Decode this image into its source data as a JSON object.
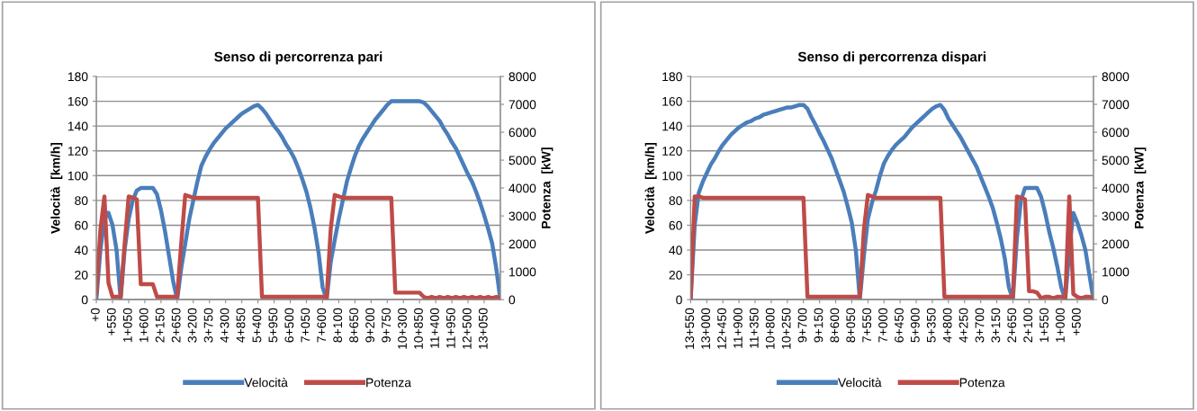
{
  "chart_data": [
    {
      "type": "line",
      "title": "Senso di percorrenza pari",
      "ylabel": "Velocità  [km/h]",
      "y2label": "Potenza  [kW]",
      "ylim": [
        0,
        180
      ],
      "yticks": [
        0,
        20,
        40,
        60,
        80,
        100,
        120,
        140,
        160,
        180
      ],
      "y2lim": [
        0,
        8000
      ],
      "y2ticks": [
        0,
        1000,
        2000,
        3000,
        4000,
        5000,
        6000,
        7000,
        8000
      ],
      "grid": "y",
      "legend": "bottom",
      "categories": [
        "+0",
        null,
        null,
        null,
        "+550",
        null,
        null,
        null,
        "1+050",
        null,
        null,
        null,
        "1+600",
        null,
        null,
        null,
        "2+150",
        null,
        null,
        null,
        "2+650",
        null,
        null,
        null,
        "3+200",
        null,
        null,
        null,
        "3+750",
        null,
        null,
        null,
        "4+300",
        null,
        null,
        null,
        "4+850",
        null,
        null,
        null,
        "5+400",
        null,
        null,
        null,
        "5+950",
        null,
        null,
        null,
        "6+500",
        null,
        null,
        null,
        "7+050",
        null,
        null,
        null,
        "7+600",
        null,
        null,
        null,
        "8+100",
        null,
        null,
        null,
        "8+650",
        null,
        null,
        null,
        "9+200",
        null,
        null,
        null,
        "9+750",
        null,
        null,
        null,
        "10+300",
        null,
        null,
        null,
        "10+850",
        null,
        null,
        null,
        "11+400",
        null,
        null,
        null,
        "11+950",
        null,
        null,
        null,
        "12+500",
        null,
        null,
        null,
        "13+050",
        null,
        null,
        null,
        null
      ],
      "series": [
        {
          "name": "Velocità",
          "color": "#4a7ebb",
          "values": [
            0,
            40,
            65,
            70,
            60,
            40,
            0,
            40,
            65,
            80,
            88,
            90,
            90,
            90,
            90,
            85,
            72,
            55,
            35,
            15,
            0,
            25,
            45,
            65,
            80,
            95,
            108,
            115,
            121,
            126,
            130,
            134,
            138,
            141,
            144,
            147,
            150,
            152,
            154,
            156,
            157,
            154,
            150,
            145,
            140,
            136,
            131,
            125,
            120,
            114,
            106,
            97,
            87,
            74,
            58,
            38,
            10,
            0,
            30,
            48,
            65,
            80,
            95,
            106,
            116,
            124,
            130,
            135,
            140,
            145,
            149,
            153,
            157,
            160,
            160,
            160,
            160,
            160,
            160,
            160,
            160,
            159,
            156,
            152,
            148,
            144,
            138,
            133,
            127,
            122,
            115,
            108,
            101,
            95,
            87,
            78,
            68,
            57,
            45,
            25,
            0
          ]
        },
        {
          "name": "Potenza",
          "color": "#be4b48",
          "axis": "y2",
          "values": [
            200,
            2500,
            3700,
            600,
            100,
            100,
            100,
            2000,
            3700,
            3650,
            3600,
            550,
            550,
            550,
            550,
            100,
            100,
            100,
            100,
            100,
            100,
            2000,
            3750,
            3700,
            3650,
            3650,
            3650,
            3650,
            3650,
            3650,
            3650,
            3650,
            3650,
            3650,
            3650,
            3650,
            3650,
            3650,
            3650,
            3650,
            3650,
            100,
            100,
            100,
            100,
            100,
            100,
            100,
            100,
            100,
            100,
            100,
            100,
            100,
            100,
            100,
            100,
            50,
            2500,
            3750,
            3700,
            3650,
            3650,
            3650,
            3650,
            3650,
            3650,
            3650,
            3650,
            3650,
            3650,
            3650,
            3650,
            3650,
            250,
            250,
            250,
            250,
            250,
            250,
            250,
            100,
            50,
            100,
            50,
            100,
            50,
            100,
            50,
            100,
            50,
            100,
            50,
            100,
            50,
            100,
            50,
            100,
            50,
            100,
            50
          ]
        }
      ]
    },
    {
      "type": "line",
      "title": "Senso di percorrenza dispari",
      "ylabel": "Velocità  [km/h]",
      "y2label": "Potenza  [kW]",
      "ylim": [
        0,
        180
      ],
      "yticks": [
        0,
        20,
        40,
        60,
        80,
        100,
        120,
        140,
        160,
        180
      ],
      "y2lim": [
        0,
        8000
      ],
      "y2ticks": [
        0,
        1000,
        2000,
        3000,
        4000,
        5000,
        6000,
        7000,
        8000
      ],
      "grid": "y",
      "legend": "bottom",
      "categories": [
        "13+550",
        null,
        null,
        null,
        "13+000",
        null,
        null,
        null,
        "12+450",
        null,
        null,
        null,
        "11+900",
        null,
        null,
        null,
        "11+350",
        null,
        null,
        null,
        "10+800",
        null,
        null,
        null,
        "10+250",
        null,
        null,
        null,
        "9+700",
        null,
        null,
        null,
        "9+150",
        null,
        null,
        null,
        "8+600",
        null,
        null,
        null,
        "8+050",
        null,
        null,
        null,
        "7+550",
        null,
        null,
        null,
        "7+000",
        null,
        null,
        null,
        "6+450",
        null,
        null,
        null,
        "5+900",
        null,
        null,
        null,
        "5+350",
        null,
        null,
        null,
        "4+800",
        null,
        null,
        null,
        "4+250",
        null,
        null,
        null,
        "3+700",
        null,
        null,
        null,
        "3+150",
        null,
        null,
        null,
        "2+650",
        null,
        null,
        null,
        "2+100",
        null,
        null,
        null,
        "1+550",
        null,
        null,
        null,
        "1+000",
        null,
        null,
        null,
        "+500",
        null,
        null,
        null,
        null
      ],
      "series": [
        {
          "name": "Velocità",
          "color": "#4a7ebb",
          "values": [
            0,
            60,
            86,
            95,
            102,
            109,
            114,
            120,
            125,
            129,
            133,
            136,
            139,
            141,
            143,
            144,
            146,
            147,
            149,
            150,
            151,
            152,
            153,
            154,
            155,
            155,
            156,
            157,
            157,
            154,
            147,
            141,
            134,
            128,
            121,
            114,
            105,
            96,
            87,
            75,
            62,
            40,
            0,
            35,
            65,
            78,
            88,
            100,
            110,
            116,
            121,
            125,
            128,
            131,
            135,
            139,
            142,
            145,
            148,
            151,
            154,
            156,
            157,
            153,
            146,
            141,
            136,
            131,
            125,
            119,
            113,
            107,
            99,
            91,
            83,
            74,
            62,
            49,
            33,
            10,
            0,
            50,
            80,
            90,
            90,
            90,
            90,
            83,
            70,
            55,
            42,
            27,
            10,
            0,
            40,
            70,
            62,
            52,
            40,
            20,
            0
          ]
        },
        {
          "name": "Potenza",
          "color": "#be4b48",
          "axis": "y2",
          "values": [
            0,
            3700,
            3700,
            3650,
            3650,
            3650,
            3650,
            3650,
            3650,
            3650,
            3650,
            3650,
            3650,
            3650,
            3650,
            3650,
            3650,
            3650,
            3650,
            3650,
            3650,
            3650,
            3650,
            3650,
            3650,
            3650,
            3650,
            3650,
            3650,
            100,
            100,
            100,
            100,
            100,
            100,
            100,
            100,
            100,
            100,
            100,
            100,
            100,
            100,
            2500,
            3750,
            3700,
            3650,
            3650,
            3650,
            3650,
            3650,
            3650,
            3650,
            3650,
            3650,
            3650,
            3650,
            3650,
            3650,
            3650,
            3650,
            3650,
            3650,
            100,
            100,
            100,
            100,
            100,
            100,
            100,
            100,
            100,
            100,
            100,
            100,
            100,
            100,
            100,
            100,
            100,
            100,
            3700,
            3650,
            3600,
            300,
            300,
            250,
            50,
            100,
            100,
            50,
            100,
            100,
            50,
            3700,
            200,
            100,
            50,
            100,
            100,
            50
          ]
        }
      ]
    }
  ]
}
